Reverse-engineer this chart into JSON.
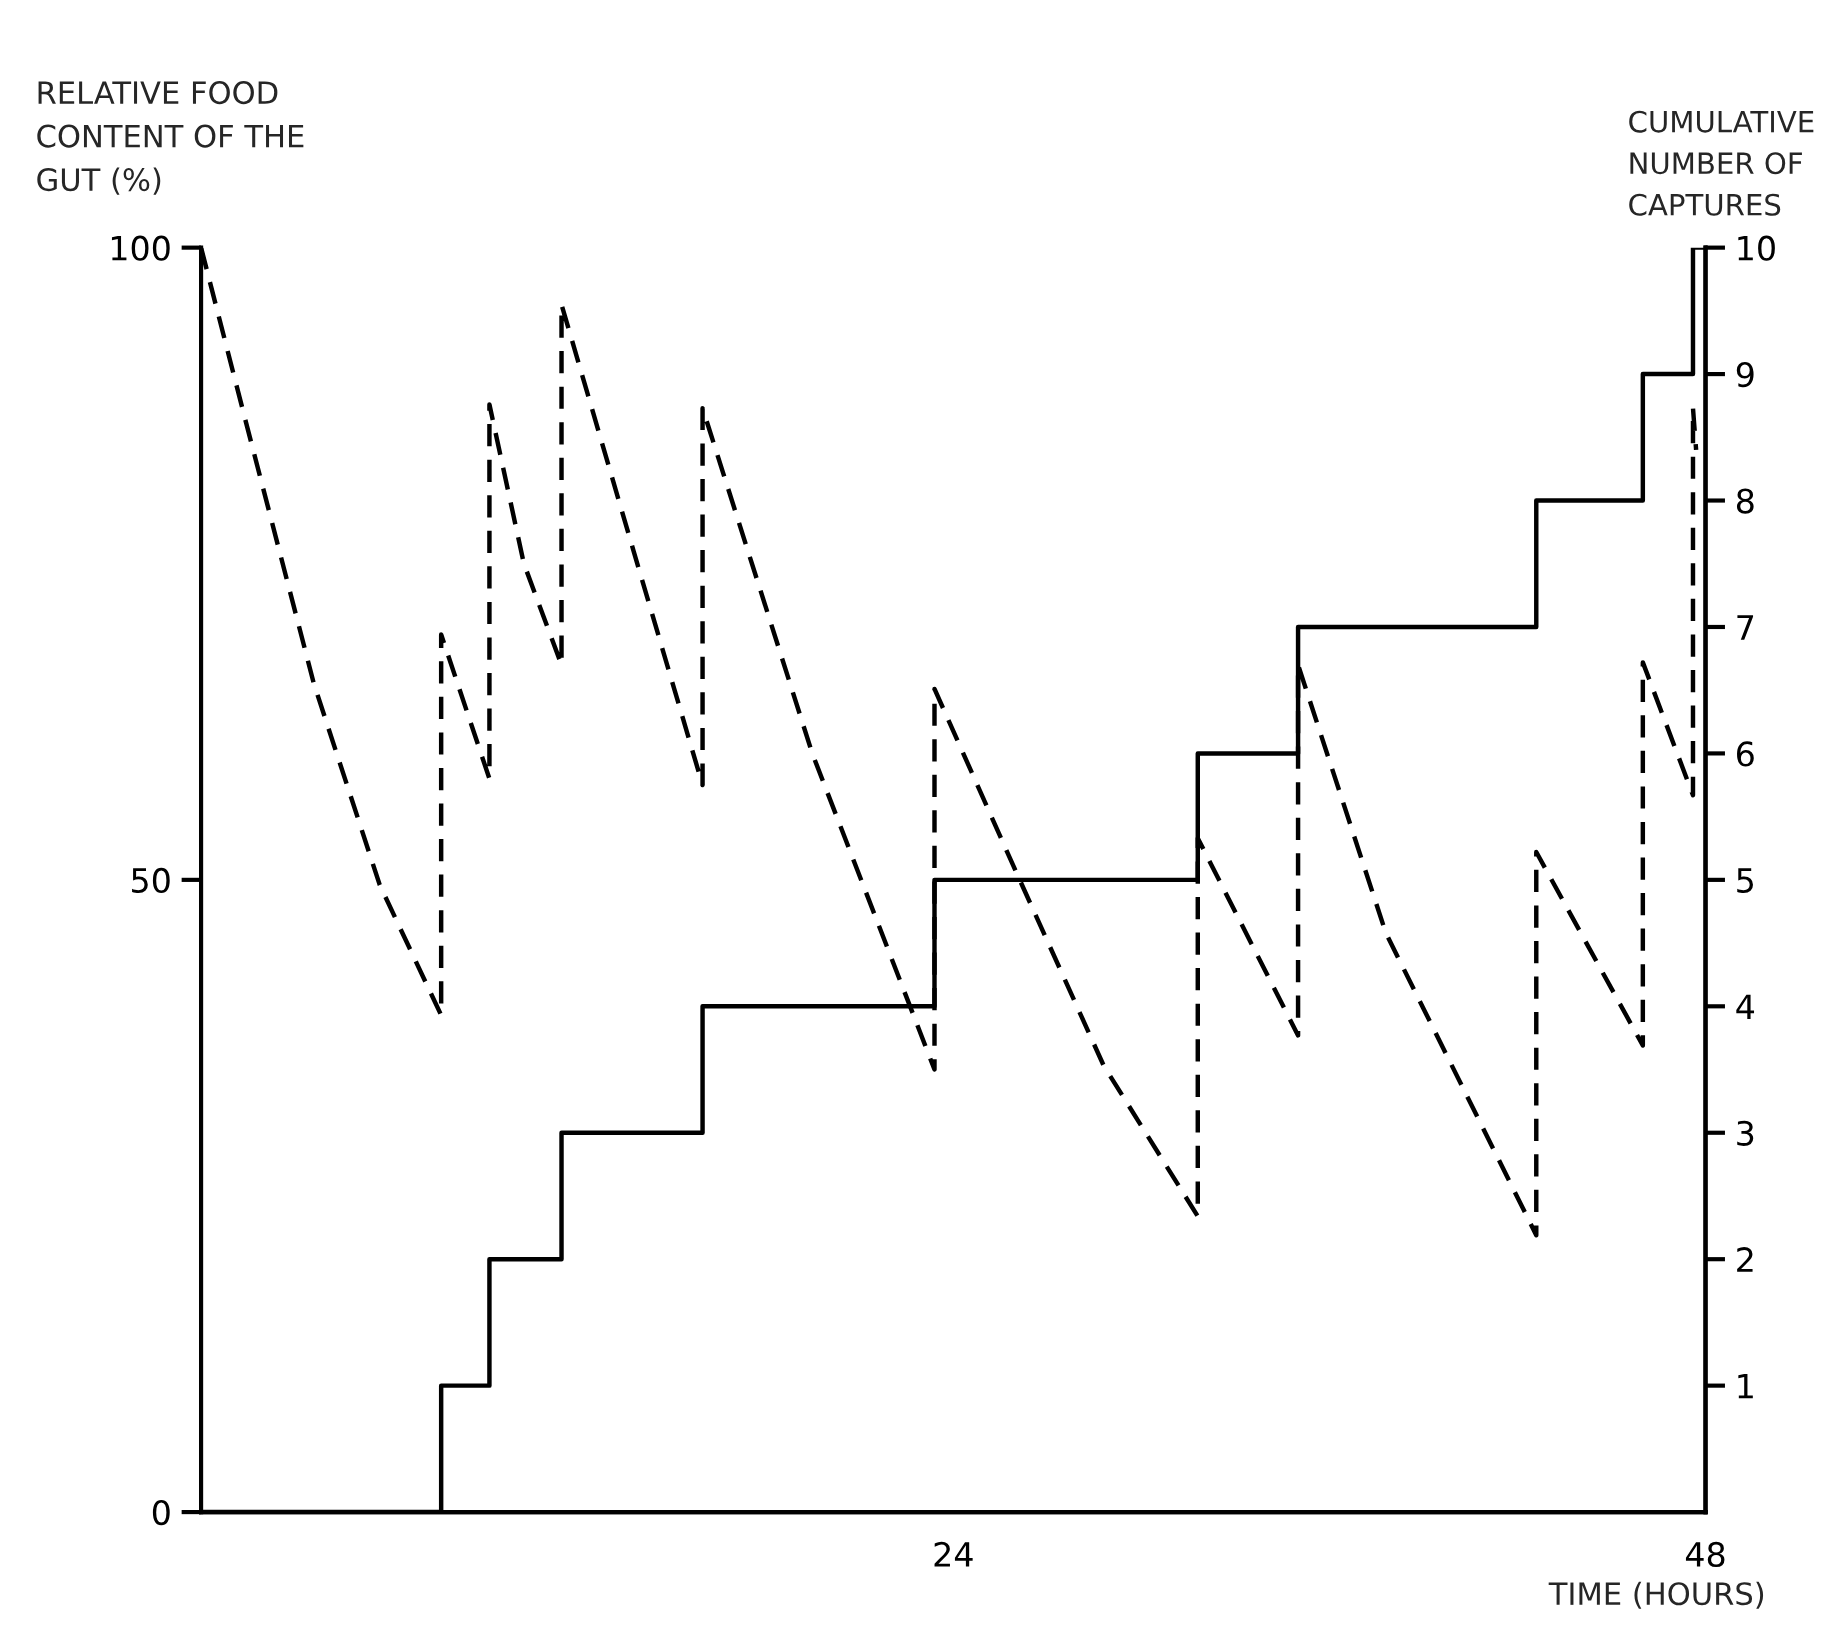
{
  "chart_data": {
    "type": "line",
    "xlabel": "TIME (HOURS)",
    "ylabel": "RELATIVE FOOD\nCONTENT OF THE\nGUT (%)",
    "y2label": "CUMULATIVE\nNUMBER OF\nCAPTURES",
    "xlim": [
      0,
      48
    ],
    "xticks": [
      24,
      48
    ],
    "ylim": [
      0,
      100
    ],
    "yticks": [
      0,
      50,
      100
    ],
    "y2lim": [
      0,
      10
    ],
    "y2ticks": [
      1,
      2,
      3,
      4,
      5,
      6,
      7,
      8,
      9,
      10
    ],
    "grid": false,
    "legend": false,
    "marker": "none",
    "series": [
      {
        "type": "line",
        "line_style": "dashed",
        "color": "#000000",
        "x": [
          0,
          1.4,
          3.6,
          5.7,
          7.66,
          7.66,
          9.2,
          9.2,
          10.3,
          11.5,
          11.5,
          13.8,
          16.0,
          16.0,
          19.5,
          23.4,
          23.4,
          25.9,
          28.8,
          31.8,
          31.8,
          35.0,
          35.0,
          37.8,
          42.6,
          42.6,
          46.0,
          46.0,
          47.6,
          47.6,
          47.7
        ],
        "values": [
          100,
          86.5,
          65.5,
          49.6,
          39.3,
          69.4,
          58.0,
          87.6,
          75,
          67.0,
          95.5,
          76,
          57.5,
          87.3,
          60,
          35.0,
          65.1,
          51.2,
          35.3,
          23.4,
          53.3,
          37.7,
          67.0,
          45.8,
          21.9,
          52.2,
          36.9,
          67.2,
          56.7,
          87.3,
          84
        ]
      },
      {
        "type": "step",
        "axis": "y2",
        "line_style": "solid",
        "color": "#000000",
        "x": [
          0,
          7.66,
          9.2,
          11.5,
          16.0,
          23.4,
          31.8,
          35.0,
          42.6,
          46.0,
          47.6,
          48
        ],
        "values": [
          0,
          1,
          2,
          3,
          4,
          5,
          6,
          7,
          8,
          9,
          10,
          10
        ]
      }
    ]
  }
}
